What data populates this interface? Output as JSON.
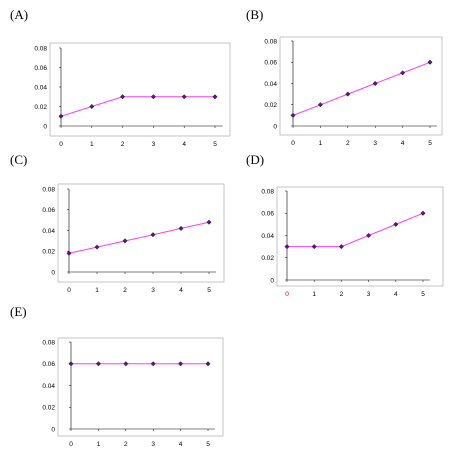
{
  "colors": {
    "line": "#ff3cff",
    "marker": "#5a1a78",
    "frame": "#b8b8b8",
    "highlight_tick": "#cc0000"
  },
  "chart_data": [
    {
      "panel": "(A)",
      "type": "line",
      "x": [
        0,
        1,
        2,
        3,
        4,
        5
      ],
      "x_tick_labels": [
        "0",
        "1",
        "2",
        "3",
        "4",
        "5"
      ],
      "y_tick_labels": [
        "0",
        "0.02",
        "0.04",
        "0.06",
        "0.08"
      ],
      "y_ticks": [
        0,
        0.02,
        0.04,
        0.06,
        0.08
      ],
      "ylim": [
        0,
        0.08
      ],
      "series": [
        {
          "values": [
            0.01,
            0.02,
            0.03,
            0.03,
            0.03,
            0.03
          ]
        }
      ],
      "grid": false
    },
    {
      "panel": "(B)",
      "type": "line",
      "x": [
        0,
        1,
        2,
        3,
        4,
        5
      ],
      "x_tick_labels": [
        "0",
        "1",
        "2",
        "3",
        "4",
        "5"
      ],
      "y_tick_labels": [
        "0",
        "0.02",
        "0.04",
        "0.06",
        "0.08"
      ],
      "y_ticks": [
        0,
        0.02,
        0.04,
        0.06,
        0.08
      ],
      "ylim": [
        0,
        0.08
      ],
      "series": [
        {
          "values": [
            0.01,
            0.02,
            0.03,
            0.04,
            0.05,
            0.06
          ]
        }
      ],
      "grid": false
    },
    {
      "panel": "(C)",
      "type": "line",
      "x": [
        0,
        1,
        2,
        3,
        4,
        5
      ],
      "x_tick_labels": [
        "0",
        "1",
        "2",
        "3",
        "4",
        "5"
      ],
      "y_tick_labels": [
        "0",
        "0.02",
        "0.04",
        "0.06",
        "0.08"
      ],
      "y_ticks": [
        0,
        0.02,
        0.04,
        0.06,
        0.08
      ],
      "ylim": [
        0,
        0.08
      ],
      "series": [
        {
          "values": [
            0.018,
            0.024,
            0.03,
            0.036,
            0.042,
            0.048
          ]
        }
      ],
      "grid": false
    },
    {
      "panel": "(D)",
      "type": "line",
      "x": [
        0,
        1,
        2,
        3,
        4,
        5
      ],
      "x_tick_labels": [
        "0",
        "1",
        "2",
        "3",
        "4",
        "5"
      ],
      "x_tick_highlight": [
        0
      ],
      "y_tick_labels": [
        "0",
        "0.02",
        "0.04",
        "0.06",
        "0.08"
      ],
      "y_ticks": [
        0,
        0.02,
        0.04,
        0.06,
        0.08
      ],
      "ylim": [
        0,
        0.08
      ],
      "series": [
        {
          "values": [
            0.03,
            0.03,
            0.03,
            0.04,
            0.05,
            0.06
          ]
        }
      ],
      "grid": false
    },
    {
      "panel": "(E)",
      "type": "line",
      "x": [
        0,
        1,
        2,
        3,
        4,
        5
      ],
      "x_tick_labels": [
        "0",
        "1",
        "2",
        "3",
        "4",
        "5"
      ],
      "y_tick_labels": [
        "0",
        "0.02",
        "0.04",
        "0.06",
        "0.08"
      ],
      "y_ticks": [
        0,
        0.02,
        0.04,
        0.06,
        0.08
      ],
      "ylim": [
        0,
        0.08
      ],
      "series": [
        {
          "values": [
            0.06,
            0.06,
            0.06,
            0.06,
            0.06,
            0.06
          ]
        }
      ],
      "grid": false
    }
  ]
}
